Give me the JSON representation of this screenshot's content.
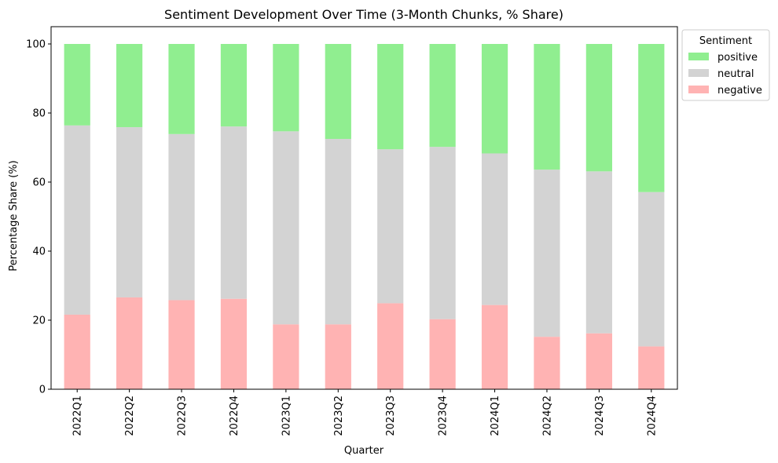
{
  "chart_data": {
    "type": "bar",
    "stacked": true,
    "title": "Sentiment Development Over Time (3-Month Chunks, % Share)",
    "xlabel": "Quarter",
    "ylabel": "Percentage Share (%)",
    "ylim": [
      0,
      105
    ],
    "yticks": [
      0,
      20,
      40,
      60,
      80,
      100
    ],
    "grid": false,
    "categories": [
      "2022Q1",
      "2022Q2",
      "2022Q3",
      "2022Q4",
      "2023Q1",
      "2023Q2",
      "2023Q3",
      "2023Q4",
      "2024Q1",
      "2024Q2",
      "2024Q3",
      "2024Q4"
    ],
    "series": [
      {
        "name": "negative",
        "color": "#ffb3b3",
        "values": [
          21.6,
          26.6,
          25.8,
          26.2,
          18.8,
          18.8,
          24.9,
          20.3,
          24.4,
          15.2,
          16.2,
          12.4
        ]
      },
      {
        "name": "neutral",
        "color": "#d3d3d3",
        "values": [
          54.8,
          49.3,
          48.1,
          49.9,
          55.9,
          53.7,
          44.6,
          49.9,
          43.9,
          48.4,
          46.9,
          44.7
        ]
      },
      {
        "name": "positive",
        "color": "#90ee90",
        "values": [
          23.6,
          24.1,
          26.1,
          23.9,
          25.3,
          27.5,
          30.5,
          29.8,
          31.7,
          36.4,
          36.9,
          42.9
        ]
      }
    ],
    "legend": {
      "title": "Sentiment",
      "placement": "outside-top-right",
      "order": [
        "positive",
        "neutral",
        "negative"
      ]
    }
  }
}
